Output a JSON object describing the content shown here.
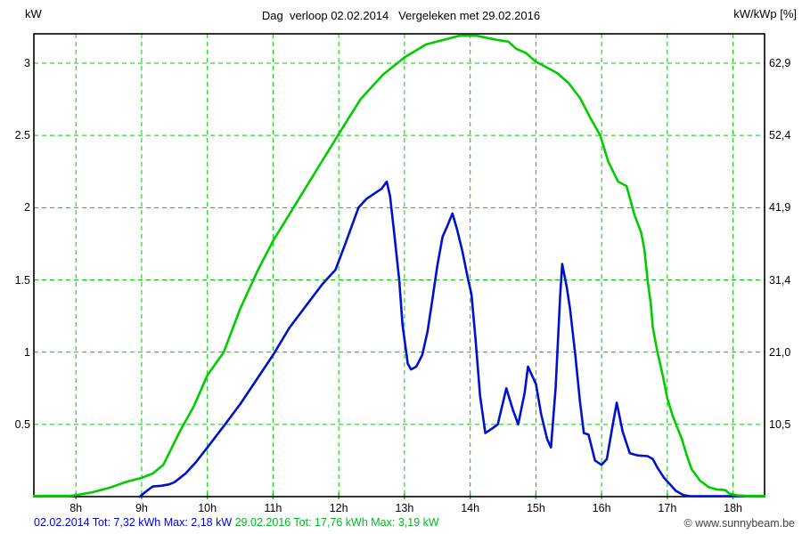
{
  "title": "Dag  verloop 02.02.2014   Vergeleken met 29.02.2016",
  "axes": {
    "left_unit": "kW",
    "right_unit": "kW/kWp [%]"
  },
  "footer": {
    "series1_summary": "02.02.2014 Tot: 7,32 kWh Max: 2,18 kW",
    "series2_summary": "29.02.2016 Tot: 17,76 kWh Max: 3,19 kW",
    "copyright": "© www.sunnybeam.be"
  },
  "colors": {
    "series1": "#0011cc",
    "series2": "#00cc00",
    "grid": "#00cc00",
    "axis_border": "#000000",
    "footer1_text": "#0000ee",
    "footer2_text": "#00bb22",
    "copyright_text": "#444444"
  },
  "chart_data": {
    "type": "line",
    "title": "Dag verloop 02.02.2014 Vergeleken met 29.02.2016",
    "grid": "on",
    "legend_position": "bottom",
    "x_axis": {
      "tick_labels": [
        "8h",
        "9h",
        "10h",
        "11h",
        "12h",
        "13h",
        "14h",
        "15h",
        "16h",
        "17h",
        "18h"
      ],
      "tick_hours": [
        8,
        9,
        10,
        11,
        12,
        13,
        14,
        15,
        16,
        17,
        18
      ],
      "range_hours": [
        7.36,
        18.48
      ]
    },
    "y_left": {
      "label": "kW",
      "tick_values": [
        0.5,
        1,
        1.5,
        2,
        2.5,
        3
      ],
      "tick_labels": [
        "0.5",
        "1",
        "1.5",
        "2",
        "2.5",
        "3"
      ],
      "range": [
        0,
        3.2
      ]
    },
    "y_right": {
      "label": "kW/kWp [%]",
      "tick_labels": [
        "10,5",
        "21,0",
        "31,4",
        "41,9",
        "52,4",
        "62,9"
      ]
    },
    "series": [
      {
        "name": "02.02.2014",
        "color": "#0011cc",
        "total": "7,32 kWh",
        "max": "2,18 kW",
        "points": [
          [
            8.97,
            0
          ],
          [
            9.0,
            0.01
          ],
          [
            9.08,
            0.04
          ],
          [
            9.17,
            0.07
          ],
          [
            9.3,
            0.075
          ],
          [
            9.42,
            0.085
          ],
          [
            9.5,
            0.1
          ],
          [
            9.67,
            0.16
          ],
          [
            9.83,
            0.24
          ],
          [
            10.0,
            0.34
          ],
          [
            10.27,
            0.5
          ],
          [
            10.5,
            0.64
          ],
          [
            10.75,
            0.81
          ],
          [
            11.0,
            0.98
          ],
          [
            11.25,
            1.17
          ],
          [
            11.5,
            1.32
          ],
          [
            11.75,
            1.47
          ],
          [
            11.95,
            1.57
          ],
          [
            12.1,
            1.75
          ],
          [
            12.3,
            2.0
          ],
          [
            12.42,
            2.06
          ],
          [
            12.55,
            2.1
          ],
          [
            12.65,
            2.13
          ],
          [
            12.73,
            2.18
          ],
          [
            12.78,
            2.08
          ],
          [
            12.85,
            1.8
          ],
          [
            12.92,
            1.5
          ],
          [
            12.97,
            1.19
          ],
          [
            13.05,
            0.92
          ],
          [
            13.1,
            0.88
          ],
          [
            13.18,
            0.9
          ],
          [
            13.27,
            0.98
          ],
          [
            13.35,
            1.14
          ],
          [
            13.43,
            1.38
          ],
          [
            13.5,
            1.6
          ],
          [
            13.58,
            1.8
          ],
          [
            13.65,
            1.87
          ],
          [
            13.73,
            1.96
          ],
          [
            13.8,
            1.85
          ],
          [
            13.88,
            1.7
          ],
          [
            13.97,
            1.5
          ],
          [
            14.02,
            1.4
          ],
          [
            14.08,
            1.1
          ],
          [
            14.15,
            0.7
          ],
          [
            14.23,
            0.44
          ],
          [
            14.33,
            0.47
          ],
          [
            14.42,
            0.5
          ],
          [
            14.55,
            0.75
          ],
          [
            14.65,
            0.6
          ],
          [
            14.73,
            0.5
          ],
          [
            14.83,
            0.72
          ],
          [
            14.88,
            0.9
          ],
          [
            15.0,
            0.78
          ],
          [
            15.08,
            0.57
          ],
          [
            15.17,
            0.4
          ],
          [
            15.23,
            0.34
          ],
          [
            15.3,
            0.75
          ],
          [
            15.37,
            1.4
          ],
          [
            15.4,
            1.61
          ],
          [
            15.47,
            1.45
          ],
          [
            15.52,
            1.3
          ],
          [
            15.6,
            0.98
          ],
          [
            15.67,
            0.66
          ],
          [
            15.73,
            0.44
          ],
          [
            15.8,
            0.43
          ],
          [
            15.9,
            0.25
          ],
          [
            16.0,
            0.22
          ],
          [
            16.08,
            0.26
          ],
          [
            16.17,
            0.5
          ],
          [
            16.23,
            0.65
          ],
          [
            16.32,
            0.45
          ],
          [
            16.43,
            0.3
          ],
          [
            16.55,
            0.285
          ],
          [
            16.7,
            0.28
          ],
          [
            16.78,
            0.26
          ],
          [
            16.85,
            0.2
          ],
          [
            16.95,
            0.13
          ],
          [
            17.05,
            0.08
          ],
          [
            17.13,
            0.04
          ],
          [
            17.25,
            0.01
          ],
          [
            17.35,
            0.003
          ],
          [
            18.1,
            0.003
          ]
        ]
      },
      {
        "name": "29.02.2016",
        "color": "#00cc00",
        "total": "17,76 kWh",
        "max": "3,19 kW",
        "points": [
          [
            7.36,
            0.005
          ],
          [
            7.9,
            0.005
          ],
          [
            8.0,
            0.01
          ],
          [
            8.25,
            0.03
          ],
          [
            8.5,
            0.06
          ],
          [
            8.75,
            0.1
          ],
          [
            9.0,
            0.13
          ],
          [
            9.17,
            0.16
          ],
          [
            9.33,
            0.22
          ],
          [
            9.58,
            0.45
          ],
          [
            9.8,
            0.63
          ],
          [
            10.0,
            0.84
          ],
          [
            10.25,
            1.0
          ],
          [
            10.5,
            1.3
          ],
          [
            10.75,
            1.55
          ],
          [
            11.0,
            1.77
          ],
          [
            11.5,
            2.14
          ],
          [
            12.0,
            2.51
          ],
          [
            12.33,
            2.75
          ],
          [
            12.67,
            2.92
          ],
          [
            13.0,
            3.04
          ],
          [
            13.33,
            3.13
          ],
          [
            13.67,
            3.17
          ],
          [
            13.83,
            3.19
          ],
          [
            14.1,
            3.19
          ],
          [
            14.42,
            3.16
          ],
          [
            14.58,
            3.15
          ],
          [
            14.7,
            3.1
          ],
          [
            14.85,
            3.07
          ],
          [
            15.0,
            3.01
          ],
          [
            15.17,
            2.97
          ],
          [
            15.33,
            2.93
          ],
          [
            15.5,
            2.86
          ],
          [
            15.67,
            2.76
          ],
          [
            15.83,
            2.62
          ],
          [
            15.98,
            2.5
          ],
          [
            16.1,
            2.32
          ],
          [
            16.25,
            2.18
          ],
          [
            16.38,
            2.15
          ],
          [
            16.5,
            1.95
          ],
          [
            16.6,
            1.83
          ],
          [
            16.65,
            1.71
          ],
          [
            16.7,
            1.5
          ],
          [
            16.75,
            1.33
          ],
          [
            16.78,
            1.17
          ],
          [
            16.85,
            1.0
          ],
          [
            16.92,
            0.86
          ],
          [
            17.0,
            0.68
          ],
          [
            17.08,
            0.56
          ],
          [
            17.22,
            0.4
          ],
          [
            17.3,
            0.28
          ],
          [
            17.37,
            0.19
          ],
          [
            17.5,
            0.11
          ],
          [
            17.63,
            0.065
          ],
          [
            17.75,
            0.05
          ],
          [
            17.88,
            0.045
          ],
          [
            17.95,
            0.02
          ],
          [
            18.05,
            0.01
          ],
          [
            18.2,
            0.005
          ],
          [
            18.48,
            0.005
          ]
        ]
      }
    ]
  }
}
